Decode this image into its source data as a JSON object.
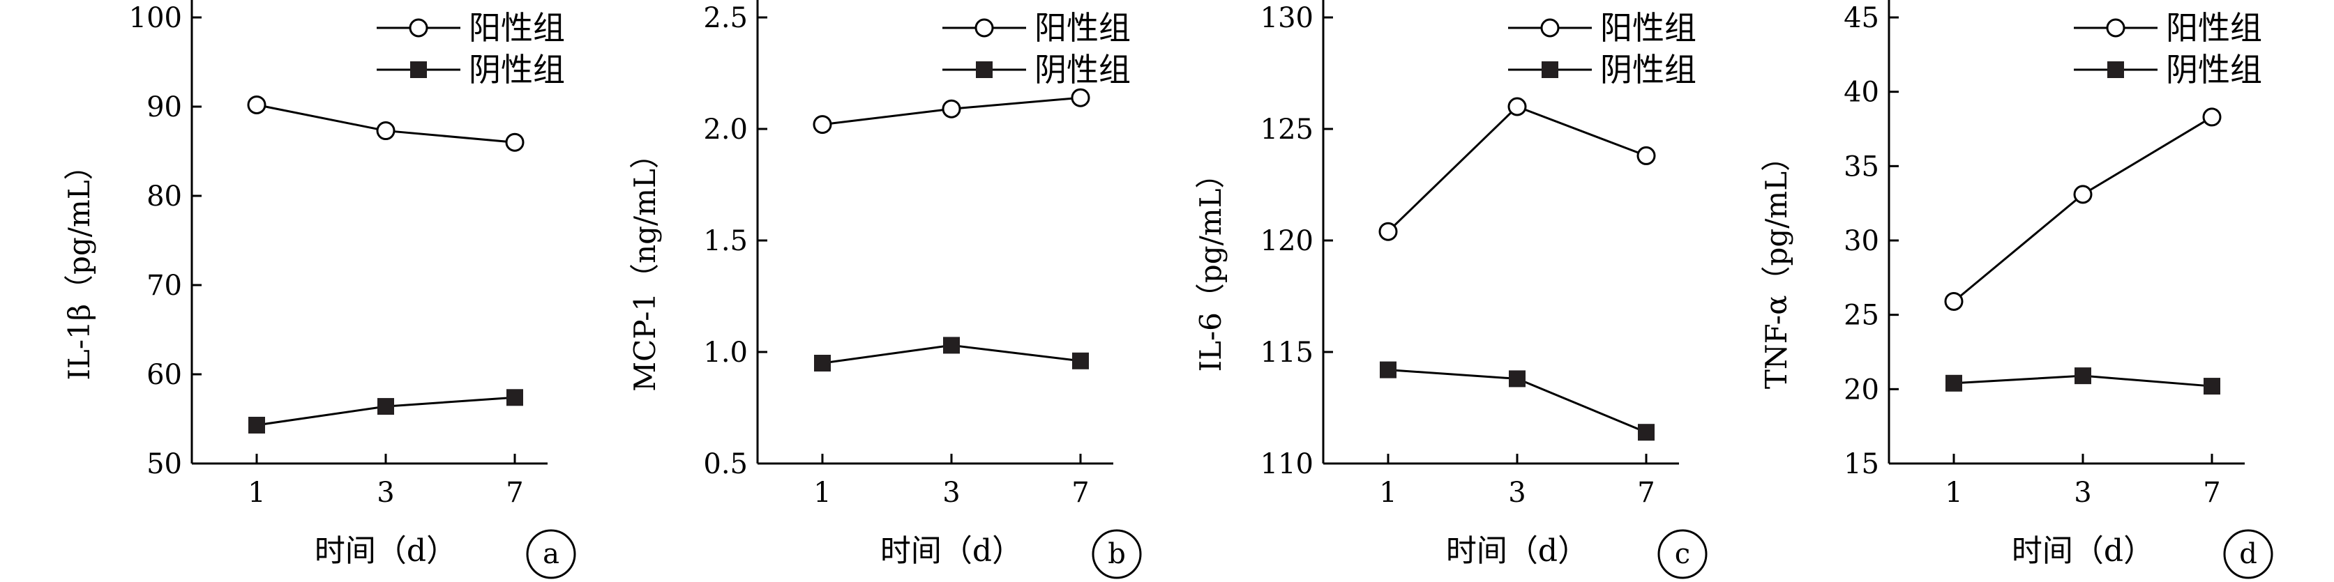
{
  "legend": {
    "positive": "阳性组",
    "negative": "阴性组"
  },
  "chart_data": [
    {
      "type": "line",
      "panel_label": "a",
      "ylabel": "IL-1β（pg/mL）",
      "xlabel": "时间（d）",
      "categories": [
        "1",
        "3",
        "7"
      ],
      "ylim": [
        50,
        100
      ],
      "yticks": [
        50,
        60,
        70,
        80,
        90,
        100
      ],
      "ytick_labels": [
        "50",
        "60",
        "70",
        "80",
        "90",
        "100"
      ],
      "legend_position": "top-right",
      "grid": false,
      "series": [
        {
          "name": "阳性组",
          "marker": "open-circle",
          "values": [
            90.2,
            87.3,
            86.0
          ]
        },
        {
          "name": "阴性组",
          "marker": "filled-square",
          "values": [
            54.3,
            56.4,
            57.4
          ]
        }
      ]
    },
    {
      "type": "line",
      "panel_label": "b",
      "ylabel": "MCP-1（ng/mL）",
      "xlabel": "时间（d）",
      "categories": [
        "1",
        "3",
        "7"
      ],
      "ylim": [
        0.5,
        2.5
      ],
      "yticks": [
        0.5,
        1.0,
        1.5,
        2.0,
        2.5
      ],
      "ytick_labels": [
        "0.5",
        "1.0",
        "1.5",
        "2.0",
        "2.5"
      ],
      "legend_position": "top-right",
      "grid": false,
      "series": [
        {
          "name": "阳性组",
          "marker": "open-circle",
          "values": [
            2.02,
            2.09,
            2.14
          ]
        },
        {
          "name": "阴性组",
          "marker": "filled-square",
          "values": [
            0.95,
            1.03,
            0.96
          ]
        }
      ]
    },
    {
      "type": "line",
      "panel_label": "c",
      "ylabel": "IL-6（pg/mL）",
      "xlabel": "时间（d）",
      "categories": [
        "1",
        "3",
        "7"
      ],
      "ylim": [
        110,
        130
      ],
      "yticks": [
        110,
        115,
        120,
        125,
        130
      ],
      "ytick_labels": [
        "110",
        "115",
        "120",
        "125",
        "130"
      ],
      "legend_position": "top-right",
      "grid": false,
      "series": [
        {
          "name": "阳性组",
          "marker": "open-circle",
          "values": [
            120.4,
            126.0,
            123.8
          ]
        },
        {
          "name": "阴性组",
          "marker": "filled-square",
          "values": [
            114.2,
            113.8,
            111.4
          ]
        }
      ]
    },
    {
      "type": "line",
      "panel_label": "d",
      "ylabel": "TNF-α（pg/mL）",
      "xlabel": "时间（d）",
      "categories": [
        "1",
        "3",
        "7"
      ],
      "ylim": [
        15,
        45
      ],
      "yticks": [
        15,
        20,
        25,
        30,
        35,
        40,
        45
      ],
      "ytick_labels": [
        "15",
        "20",
        "25",
        "30",
        "35",
        "40",
        "45"
      ],
      "legend_position": "top-right",
      "grid": false,
      "series": [
        {
          "name": "阳性组",
          "marker": "open-circle",
          "values": [
            25.9,
            33.1,
            38.3
          ]
        },
        {
          "name": "阴性组",
          "marker": "filled-square",
          "values": [
            20.4,
            20.9,
            20.2
          ]
        }
      ]
    }
  ]
}
